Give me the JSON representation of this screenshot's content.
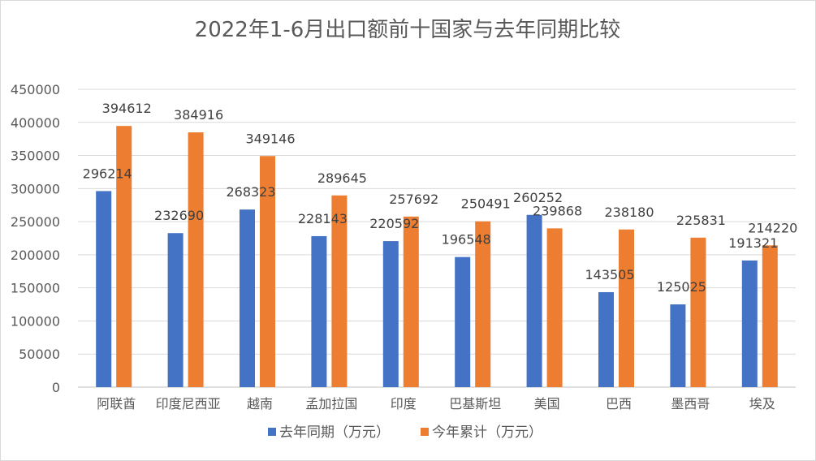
{
  "chart_data": {
    "type": "bar",
    "title": "2022年1-6月出口额前十国家与去年同期比较",
    "categories": [
      "阿联酋",
      "印度尼西亚",
      "越南",
      "孟加拉国",
      "印度",
      "巴基斯坦",
      "美国",
      "巴西",
      "墨西哥",
      "埃及"
    ],
    "series": [
      {
        "name": "去年同期（万元）",
        "color": "#4472C4",
        "values": [
          296214,
          232690,
          268323,
          228143,
          220592,
          196548,
          260252,
          143505,
          125025,
          191321
        ]
      },
      {
        "name": "今年累计（万元）",
        "color": "#ED7D31",
        "values": [
          394612,
          384916,
          349146,
          289645,
          257692,
          250491,
          239868,
          238180,
          225831,
          214220
        ]
      }
    ],
    "ylim": [
      0,
      450000
    ],
    "yticks": [
      0,
      50000,
      100000,
      150000,
      200000,
      250000,
      300000,
      350000,
      400000,
      450000
    ],
    "grid": true,
    "legend": "bottom",
    "xlabel": "",
    "ylabel": ""
  }
}
